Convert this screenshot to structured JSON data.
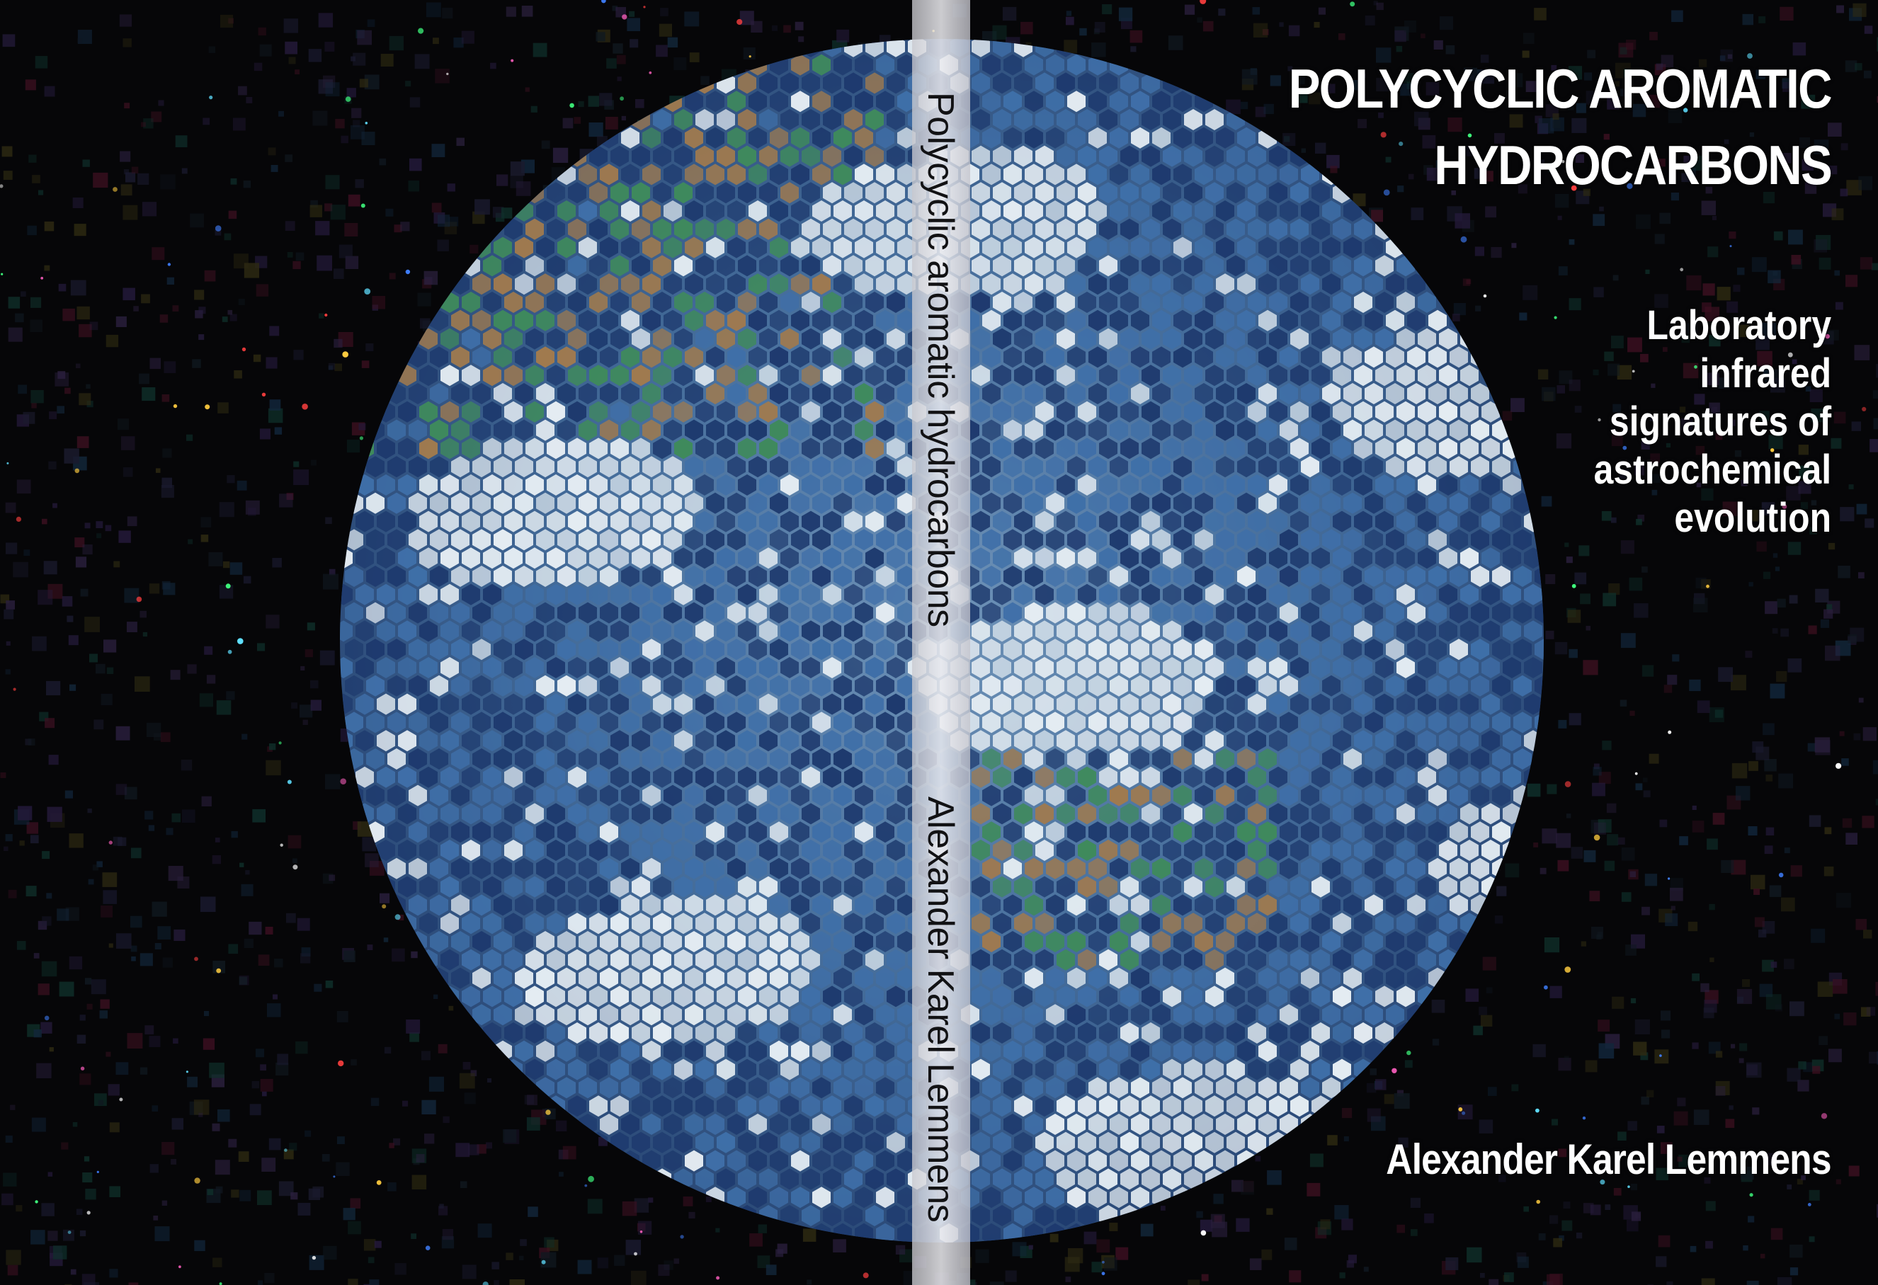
{
  "cover": {
    "title_line_1": "POLYCYCLIC AROMATIC",
    "title_line_2": "HYDROCARBONS",
    "subtitle_lines": [
      "Laboratory",
      "infrared",
      "signatures of",
      "astrochemical",
      "evolution"
    ],
    "author": "Alexander Karel Lemmens"
  },
  "spine": {
    "title": "Polycyclic aromatic hydrocarbons",
    "author": "Alexander Karel Lemmens"
  },
  "artwork": {
    "background": "hexagon mosaic of small images on black, forming a planet Earth",
    "colors": {
      "space": "#060608",
      "ocean_dark": "#1e3a6e",
      "ocean_mid": "#3f6fa8",
      "cloud": "#e4ecf2",
      "land_green": "#3f8a5c",
      "land_brown": "#a07a4e",
      "spine": "#e6e6ea"
    }
  }
}
